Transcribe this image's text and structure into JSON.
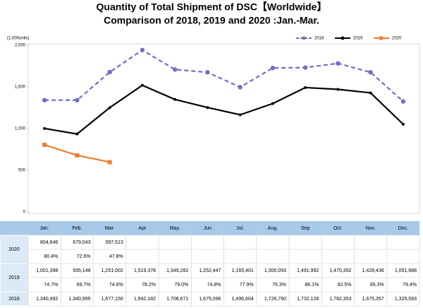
{
  "chart_data": {
    "type": "line",
    "title": "Quantity of Total Shipment of DSC【Worldwide】",
    "subtitle": "Comparison of 2018, 2019 and 2020 :Jan.-Mar.",
    "y_unit": "(1,000units)",
    "categories": [
      "Jan.",
      "Feb.",
      "Mar.",
      "Apr",
      "May.",
      "Jun",
      "Jul.",
      "Aug.",
      "Sep",
      "Oct.",
      "Nov.",
      "Dec."
    ],
    "ylim": [
      0,
      2000
    ],
    "yticks": [
      0,
      500,
      {
        "value": 1000,
        "label": "1,000"
      },
      {
        "value": 1500,
        "label": "1,500"
      },
      {
        "value": 2000,
        "label": "2,000"
      }
    ],
    "series": [
      {
        "name": "2018",
        "color": "#6f6fc2",
        "dashed": true,
        "marker": "circle",
        "values": [
          1340.492,
          1340.995,
          1677.15,
          1942.182,
          1708.671,
          1675.096,
          1496.604,
          1726.76,
          1732.128,
          1782.353,
          1675.357,
          1325.583
        ],
        "value_labels": [
          "1,340,492",
          "1,340,995",
          "1,677,150",
          "1,942,182",
          "1,708,671",
          "1,675,096",
          "1,496,604",
          "1,726,760",
          "1,732,128",
          "1,782,353",
          "1,675,357",
          "1,325,583"
        ]
      },
      {
        "name": "2019",
        "color": "#000000",
        "dashed": false,
        "marker": "circle",
        "values": [
          1001.398,
          935.148,
          1251.002,
          1519.378,
          1349.282,
          1252.447,
          1165.401,
          1300.093,
          1491.992,
          1470.392,
          1428.436,
          1051.988
        ],
        "value_labels": [
          "1,001,398",
          "935,148",
          "1,251,002",
          "1,519,378",
          "1,349,282",
          "1,252,447",
          "1,165,401",
          "1,300,093",
          "1,491,992",
          "1,470,392",
          "1,428,436",
          "1,051,988"
        ]
      },
      {
        "name": "2020",
        "color": "#ed7d31",
        "dashed": false,
        "marker": "square",
        "values": [
          804.646,
          679.043,
          597.513,
          null,
          null,
          null,
          null,
          null,
          null,
          null,
          null,
          null
        ],
        "value_labels": [
          "804,646",
          "679,043",
          "597,513",
          null,
          null,
          null,
          null,
          null,
          null,
          null,
          null,
          null
        ]
      }
    ],
    "yoy": [
      {
        "name": "2020",
        "values": [
          80.4,
          72.6,
          47.8,
          null,
          null,
          null,
          null,
          null,
          null,
          null,
          null,
          null
        ],
        "value_labels": [
          "80.4%",
          "72.6%",
          "47.8%",
          null,
          null,
          null,
          null,
          null,
          null,
          null,
          null,
          null
        ]
      },
      {
        "name": "2019",
        "values": [
          74.7,
          69.7,
          74.6,
          78.2,
          79.0,
          74.8,
          77.9,
          75.3,
          86.1,
          82.5,
          85.3,
          79.4
        ],
        "value_labels": [
          "74.7%",
          "69.7%",
          "74.6%",
          "78.2%",
          "79.0%",
          "74.8%",
          "77.9%",
          "75.3%",
          "86.1%",
          "82.5%",
          "85.3%",
          "79.4%"
        ]
      }
    ]
  }
}
